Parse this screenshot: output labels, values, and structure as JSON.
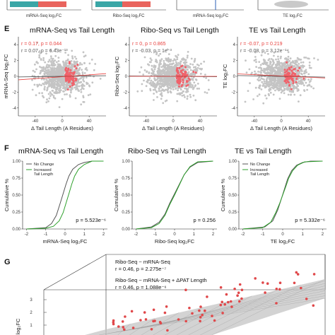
{
  "top_strip": {
    "xlabels": [
      "mRNA-Seq log₂FC",
      "Ribo-Seq log₂FC",
      "mRNA-Seq log₂FC",
      "TE log₂FC"
    ]
  },
  "panel_e": {
    "letter": "E",
    "colors": {
      "grey": "#c4c4c4",
      "red": "#f0626b",
      "redline": "#e8413e",
      "blackline": "#444444"
    },
    "xlabel": "Δ Tail Length (A Residues)",
    "xticks": [
      "-40",
      "0",
      "40"
    ],
    "chart_data": [
      {
        "type": "scatter",
        "title": "mRNA-Seq vs Tail Length",
        "ylabel": "mRNA-Seq log₂FC",
        "yticks": [
          "4",
          "2",
          "0",
          "-2",
          "-4"
        ],
        "xlim": [
          -65,
          65
        ],
        "ylim": [
          -5,
          5
        ],
        "stat_red": "r = 0.17, p = 0.044",
        "stat_grey": "r = 0.07, p = 6.43e⁻¹³",
        "fit_grey": {
          "slope": 0.0012,
          "intercept": 0.0
        },
        "fit_red": {
          "slope": 0.006,
          "intercept": -0.05
        }
      },
      {
        "type": "scatter",
        "title": "Ribo-Seq vs Tail Length",
        "ylabel": "Ribo-Seq log₂FC",
        "yticks": [
          "4",
          "2",
          "0",
          "-2",
          "-4"
        ],
        "xlim": [
          -65,
          65
        ],
        "ylim": [
          -5,
          5
        ],
        "stat_red": "r = 0, p = 0.865",
        "stat_grey": "r = -0.03, p = 1e⁻³",
        "fit_grey": {
          "slope": -0.0006,
          "intercept": 0.0
        },
        "fit_red": {
          "slope": 0.0,
          "intercept": 0.0
        }
      },
      {
        "type": "scatter",
        "title": "TE vs Tail Length",
        "ylabel": "TE log₂FC",
        "yticks": [
          "4",
          "2",
          "0",
          "-2",
          "-4"
        ],
        "xlim": [
          -65,
          65
        ],
        "ylim": [
          -5,
          5
        ],
        "stat_red": "r = -0.07, p = 0.219",
        "stat_grey": "r = -0.08, p = 3.12e⁻¹⁴",
        "fit_grey": {
          "slope": -0.0015,
          "intercept": 0.0
        },
        "fit_red": {
          "slope": -0.004,
          "intercept": 0.05
        }
      }
    ]
  },
  "panel_f": {
    "letter": "F",
    "ylabel": "Cumulative %",
    "yticks": [
      "1.00",
      "0.75",
      "0.50",
      "0.25",
      "0.00"
    ],
    "xticks": [
      "-2",
      "-1",
      "0",
      "1",
      "2"
    ],
    "legend": [
      "No Change",
      "Increased\nTail Length"
    ],
    "colors": {
      "nochange": "#555555",
      "increased": "#2ea02c"
    },
    "chart_data": [
      {
        "type": "line",
        "title": "mRNA-Seq vs Tail Length",
        "xlabel": "mRNA-Seq log₂FC",
        "pvalue": "p = 5.523e⁻⁶",
        "xlim": [
          -2.2,
          2.2
        ],
        "ylim": [
          0,
          1
        ],
        "show_legend": true,
        "series": [
          {
            "name": "No Change",
            "x": [
              -2.0,
              -1.0,
              -0.7,
              -0.45,
              -0.25,
              -0.1,
              0.05,
              0.2,
              0.4,
              0.7,
              1.0,
              1.4,
              2.0
            ],
            "values": [
              0,
              0.02,
              0.08,
              0.2,
              0.38,
              0.52,
              0.66,
              0.78,
              0.88,
              0.95,
              0.98,
              1.0,
              1.0
            ]
          },
          {
            "name": "Increased Tail Length",
            "x": [
              -2.0,
              -1.0,
              -0.6,
              -0.3,
              -0.1,
              0.05,
              0.2,
              0.35,
              0.5,
              0.7,
              1.0,
              1.4,
              2.0
            ],
            "values": [
              0,
              0.01,
              0.04,
              0.12,
              0.24,
              0.38,
              0.52,
              0.66,
              0.78,
              0.88,
              0.95,
              1.0,
              1.0
            ]
          }
        ]
      },
      {
        "type": "line",
        "title": "Ribo-Seq vs Tail Length",
        "xlabel": "Ribo-Seq log₂FC",
        "pvalue": "p = 0.256",
        "xlim": [
          -2.2,
          2.2
        ],
        "ylim": [
          0,
          1
        ],
        "show_legend": false,
        "series": [
          {
            "name": "No Change",
            "x": [
              -2.0,
              -1.2,
              -0.8,
              -0.5,
              -0.25,
              0.0,
              0.25,
              0.5,
              0.8,
              1.2,
              2.0
            ],
            "values": [
              0,
              0.03,
              0.1,
              0.22,
              0.38,
              0.52,
              0.66,
              0.8,
              0.91,
              0.98,
              1.0
            ]
          },
          {
            "name": "Increased Tail Length",
            "x": [
              -2.0,
              -1.2,
              -0.8,
              -0.5,
              -0.25,
              0.0,
              0.25,
              0.5,
              0.8,
              1.2,
              2.0
            ],
            "values": [
              0,
              0.02,
              0.08,
              0.2,
              0.36,
              0.5,
              0.65,
              0.8,
              0.92,
              0.99,
              1.0
            ]
          }
        ]
      },
      {
        "type": "line",
        "title": "TE vs Tail Length",
        "xlabel": "TE log₂FC",
        "pvalue": "p = 5.332e⁻⁶",
        "xlim": [
          -2.2,
          2.2
        ],
        "ylim": [
          0,
          1
        ],
        "show_legend": true,
        "series": [
          {
            "name": "No Change",
            "x": [
              -2.0,
              -0.9,
              -0.5,
              -0.25,
              -0.05,
              0.1,
              0.25,
              0.45,
              0.7,
              1.0,
              1.4,
              2.0
            ],
            "values": [
              0,
              0.03,
              0.12,
              0.28,
              0.46,
              0.6,
              0.74,
              0.86,
              0.94,
              0.98,
              1.0,
              1.0
            ]
          },
          {
            "name": "Increased Tail Length",
            "x": [
              -2.0,
              -1.0,
              -0.6,
              -0.35,
              -0.15,
              0.0,
              0.15,
              0.3,
              0.5,
              0.75,
              1.1,
              2.0
            ],
            "values": [
              0,
              0.02,
              0.1,
              0.24,
              0.38,
              0.5,
              0.62,
              0.75,
              0.86,
              0.94,
              0.99,
              1.0
            ]
          }
        ]
      }
    ]
  },
  "panel_g": {
    "letter": "G",
    "model1": "Ribo-Seq ~ mRNA-Seq",
    "model1_stat": "r = 0.46, p = 2.275e⁻⁷",
    "model2": "Ribo-Seq ~ mRNA-Seq + ΔPAT Length",
    "model2_stat": "r = 0.46, p = 1.088e⁻⁶",
    "zlabel": "log₂FC",
    "zticks": [
      "3",
      "2",
      "1"
    ],
    "colors": {
      "plane": "#c8c8c8",
      "point": "#e0484a"
    }
  }
}
